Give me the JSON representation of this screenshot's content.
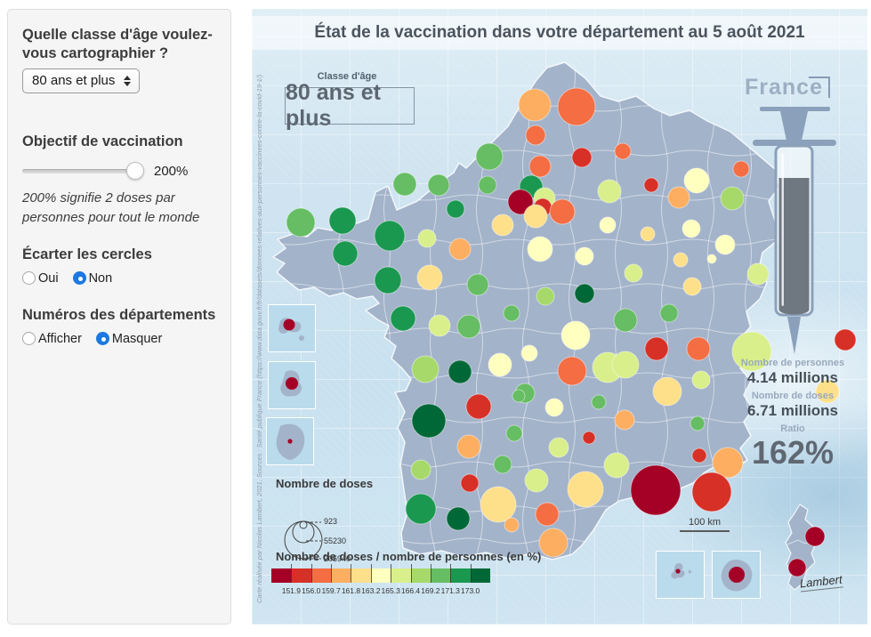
{
  "sidebar": {
    "age_question": "Quelle classe d'âge voulez-vous cartographier ?",
    "age_select_value": "80 ans et plus",
    "objective_label": "Objectif de vaccination",
    "objective_value": "200%",
    "objective_note": "200% signifie 2 doses par personnes pour tout le monde",
    "spread_label": "Écarter les cercles",
    "spread_options": [
      {
        "label": "Oui",
        "selected": false
      },
      {
        "label": "Non",
        "selected": true
      }
    ],
    "numbers_label": "Numéros des départements",
    "numbers_options": [
      {
        "label": "Afficher",
        "selected": false
      },
      {
        "label": "Masquer",
        "selected": true
      }
    ],
    "accent_color": "#1d78e2"
  },
  "map": {
    "title": "État de la vaccination dans votre département au 5 août 2021",
    "age_class_label": "Classe d'âge",
    "age_class_value": "80 ans et plus",
    "country_label": "France",
    "credit": "Carte réalisée par Nicolas Lambert, 2021. Sources : Santé publique France (https://www.data.gouv.fr/fr/datasets/donnees-relatives-aux-personnes-vaccinees-contre-la-covid-19-1/)",
    "stats": {
      "persons_label": "Nombre de personnes",
      "persons_value": "4.14 millions",
      "doses_label": "Nombre de doses",
      "doses_value": "6.71 millions",
      "ratio_label": "Ratio",
      "ratio_value": "162%"
    },
    "scale_bar_label": "100 km",
    "signature": "Lambert",
    "land_color": "#a3b3ca",
    "sea_color": "#cfe4f0"
  },
  "chart_data": {
    "type": "proportional_symbol_map",
    "size_legend": {
      "title": "Nombre de doses",
      "values": [
        "923",
        "55230",
        "205940"
      ]
    },
    "color_legend": {
      "title": "Nombre de doses / nombre de personnes (en %)",
      "breaks": [
        151.9,
        156.0,
        159.7,
        161.8,
        163.2,
        165.3,
        166.4,
        169.2,
        171.3,
        173.0
      ],
      "colors": [
        "#a50026",
        "#d73027",
        "#f46d43",
        "#fdae61",
        "#fee08b",
        "#ffffbf",
        "#d9ef8b",
        "#a6d96a",
        "#66bd63",
        "#1a9850",
        "#006837"
      ]
    },
    "circles": [
      [
        318,
        108,
        18,
        3
      ],
      [
        365,
        110,
        21,
        2
      ],
      [
        319,
        142,
        11,
        2
      ],
      [
        267,
        166,
        15,
        8
      ],
      [
        324,
        177,
        12,
        2
      ],
      [
        371,
        167,
        11,
        1
      ],
      [
        417,
        160,
        9,
        2
      ],
      [
        550,
        180,
        9,
        2
      ],
      [
        172,
        197,
        13,
        8
      ],
      [
        210,
        198,
        12,
        8
      ],
      [
        265,
        198,
        10,
        8
      ],
      [
        314,
        200,
        13,
        9
      ],
      [
        302,
        217,
        14,
        0
      ],
      [
        329,
        213,
        12,
        6
      ],
      [
        327,
        223,
        10,
        1
      ],
      [
        319,
        233,
        13,
        4
      ],
      [
        349,
        228,
        14,
        2
      ],
      [
        402,
        205,
        13,
        6
      ],
      [
        229,
        225,
        10,
        9
      ],
      [
        155,
        255,
        17,
        9
      ],
      [
        197,
        258,
        10,
        6
      ],
      [
        234,
        270,
        12,
        3
      ],
      [
        282,
        243,
        12,
        4
      ],
      [
        324,
        270,
        14,
        5
      ],
      [
        374,
        278,
        10,
        5
      ],
      [
        400,
        243,
        9,
        5
      ],
      [
        445,
        253,
        8,
        4
      ],
      [
        500,
        193,
        14,
        5
      ],
      [
        480,
        212,
        12,
        3
      ],
      [
        540,
        213,
        13,
        7
      ],
      [
        494,
        247,
        10,
        5
      ],
      [
        532,
        265,
        11,
        5
      ],
      [
        517,
        281,
        5,
        5
      ],
      [
        482,
        282,
        8,
        4
      ],
      [
        429,
        297,
        10,
        6
      ],
      [
        495,
        312,
        10,
        4
      ],
      [
        449,
        198,
        8,
        1
      ],
      [
        55,
        240,
        16,
        8
      ],
      [
        102,
        238,
        15,
        9
      ],
      [
        105,
        275,
        14,
        9
      ],
      [
        153,
        305,
        15,
        9
      ],
      [
        200,
        302,
        14,
        4
      ],
      [
        170,
        348,
        14,
        9
      ],
      [
        211,
        356,
        12,
        6
      ],
      [
        254,
        310,
        12,
        8
      ],
      [
        292,
        342,
        9,
        8
      ],
      [
        330,
        323,
        10,
        7
      ],
      [
        374,
        320,
        11,
        10
      ],
      [
        244,
        357,
        13,
        8
      ],
      [
        195,
        405,
        15,
        7
      ],
      [
        234,
        408,
        13,
        10
      ],
      [
        279,
        400,
        13,
        5
      ],
      [
        312,
        387,
        9,
        5
      ],
      [
        364,
        367,
        16,
        5
      ],
      [
        360,
        407,
        16,
        2
      ],
      [
        400,
        403,
        17,
        6
      ],
      [
        420,
        400,
        15,
        6
      ],
      [
        255,
        447,
        14,
        1
      ],
      [
        307,
        432,
        11,
        8
      ],
      [
        340,
        448,
        10,
        5
      ],
      [
        199,
        463,
        19,
        10
      ],
      [
        295,
        477,
        9,
        8
      ],
      [
        379,
        482,
        7,
        1
      ],
      [
        244,
        492,
        13,
        3
      ],
      [
        345,
        493,
        11,
        6
      ],
      [
        419,
        462,
        11,
        3
      ],
      [
        390,
        442,
        8,
        8
      ],
      [
        455,
        382,
        13,
        1
      ],
      [
        502,
        382,
        13,
        2
      ],
      [
        505,
        417,
        10,
        6
      ],
      [
        467,
        430,
        16,
        4
      ],
      [
        501,
        466,
        8,
        8
      ],
      [
        420,
        350,
        13,
        8
      ],
      [
        469,
        342,
        10,
        8
      ],
      [
        190,
        518,
        11,
        7
      ],
      [
        282,
        512,
        10,
        8
      ],
      [
        245,
        533,
        10,
        1
      ],
      [
        190,
        562,
        17,
        9
      ],
      [
        232,
        573,
        13,
        10
      ],
      [
        277,
        557,
        20,
        4
      ],
      [
        320,
        530,
        13,
        6
      ],
      [
        375,
        540,
        20,
        4
      ],
      [
        292,
        580,
        8,
        3
      ],
      [
        332,
        568,
        13,
        2
      ],
      [
        339,
        600,
        16,
        3
      ],
      [
        410,
        513,
        14,
        6
      ],
      [
        300,
        435,
        7,
        8
      ],
      [
        562,
        385,
        22,
        6
      ],
      [
        667,
        372,
        12,
        1
      ],
      [
        647,
        430,
        13,
        4
      ],
      [
        569,
        298,
        12,
        6
      ],
      [
        535,
        510,
        17,
        3
      ],
      [
        503,
        502,
        8,
        1
      ],
      [
        454,
        541,
        28,
        0
      ],
      [
        517,
        543,
        22,
        1
      ],
      [
        633,
        593,
        11,
        0
      ],
      [
        613,
        628,
        10,
        0
      ]
    ]
  }
}
